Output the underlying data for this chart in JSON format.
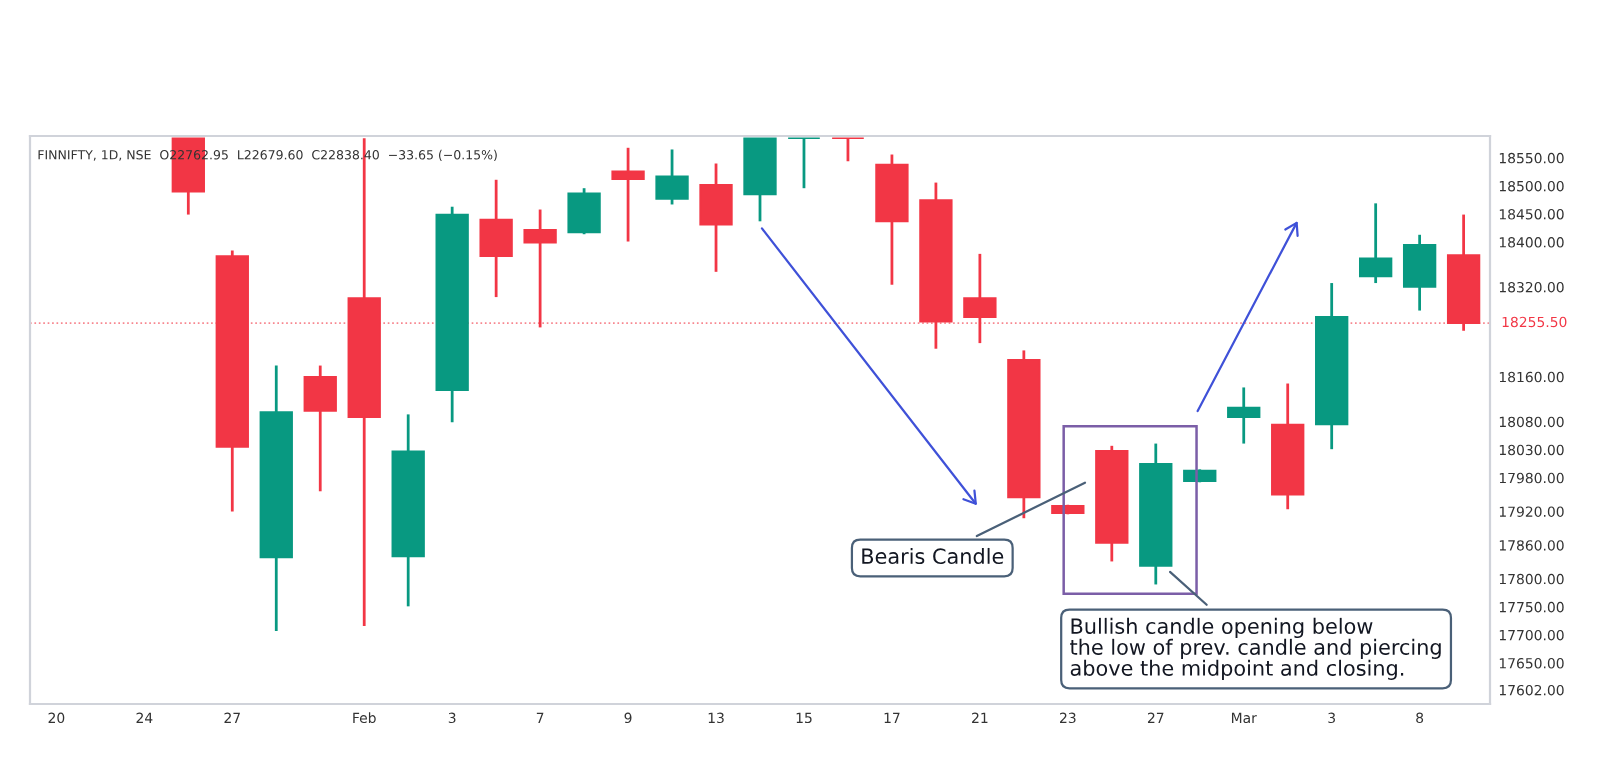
{
  "chart_data": {
    "type": "candlestick",
    "categories": [
      "20",
      null,
      "24",
      null,
      "27",
      null,
      null,
      "Feb",
      null,
      "3",
      null,
      "7",
      null,
      "9",
      null,
      "13",
      null,
      "15",
      null,
      "17",
      null,
      "21",
      null,
      "23",
      null,
      "27",
      null,
      "Mar",
      null,
      "3",
      null,
      "8",
      null
    ],
    "ohlc": [
      null,
      null,
      null,
      [
        18585,
        18585,
        18449,
        18490
      ],
      [
        18375,
        18385,
        17920,
        18035
      ],
      [
        17838,
        18180,
        17707,
        18097
      ],
      [
        18160,
        18180,
        17956,
        18099
      ],
      [
        18300,
        18585,
        17716,
        18088
      ],
      [
        17840,
        18093,
        17751,
        18027
      ],
      [
        18136,
        18463,
        18079,
        18449
      ],
      [
        18440,
        18511,
        18302,
        18375
      ],
      [
        18422,
        18458,
        18248,
        18399
      ],
      [
        18417,
        18496,
        18414,
        18487
      ],
      [
        18526,
        18568,
        18401,
        18512
      ],
      [
        18477,
        18565,
        18467,
        18517
      ],
      [
        18502,
        18540,
        18347,
        18431
      ],
      [
        18485,
        18585,
        18437,
        18585
      ],
      [
        18585,
        18585,
        18496,
        18585
      ],
      [
        18585,
        18585,
        18544,
        18585
      ],
      [
        18538,
        18556,
        18324,
        18437
      ],
      [
        18475,
        18506,
        18210,
        18258
      ],
      [
        18300,
        18379,
        18220,
        18266
      ],
      [
        18190,
        18207,
        17908,
        17945
      ],
      [
        17930,
        17932,
        17915,
        17917
      ],
      [
        18028,
        18037,
        17831,
        17864
      ],
      [
        17823,
        18041,
        17790,
        18005
      ],
      [
        17974,
        17995,
        17972,
        17993
      ],
      [
        18088,
        18141,
        18041,
        18105
      ],
      [
        18075,
        18148,
        17924,
        17950
      ],
      [
        18075,
        18327,
        18031,
        18267
      ],
      [
        18339,
        18469,
        18327,
        18371
      ],
      [
        18320,
        18413,
        18278,
        18395
      ],
      [
        18377,
        18449,
        18242,
        18255.5
      ]
    ],
    "colors": [
      null,
      null,
      null,
      "#f23645",
      "#f23645",
      "#089981",
      "#f23645",
      "#f23645",
      "#089981",
      "#089981",
      "#f23645",
      "#f23645",
      "#089981",
      "#f23645",
      "#089981",
      "#f23645",
      "#089981",
      "#089981",
      "#f23645",
      "#f23645",
      "#f23645",
      "#f23645",
      "#f23645",
      "#f23645",
      "#f23645",
      "#089981",
      "#089981",
      "#089981",
      "#f23645",
      "#089981",
      "#089981",
      "#089981",
      "#f23645"
    ],
    "ylim": [
      17577,
      18589
    ],
    "yticks": [
      {
        "value": 17602,
        "label": "17602.00"
      },
      {
        "value": 17650,
        "label": "17650.00"
      },
      {
        "value": 17700,
        "label": "17700.00"
      },
      {
        "value": 17750,
        "label": "17750.00"
      },
      {
        "value": 17800,
        "label": "17800.00"
      },
      {
        "value": 17860,
        "label": "17860.00"
      },
      {
        "value": 17920,
        "label": "17920.00"
      },
      {
        "value": 17980,
        "label": "17980.00"
      },
      {
        "value": 18030,
        "label": "18030.00"
      },
      {
        "value": 18080,
        "label": "18080.00"
      },
      {
        "value": 18160,
        "label": "18160.00"
      },
      {
        "value": 18320,
        "label": "18320.00"
      },
      {
        "value": 18400,
        "label": "18400.00"
      },
      {
        "value": 18450,
        "label": "18450.00"
      },
      {
        "value": 18500,
        "label": "18500.00"
      },
      {
        "value": 18550,
        "label": "18550.00"
      }
    ],
    "ref_lines": [
      {
        "axis": "y",
        "value": 18255.5,
        "label": "18255.50",
        "color": "#f23645",
        "line_style": "dotted"
      }
    ],
    "annotations": [
      "FINNIFTY, 1D, NSE  O22762.95  L22679.60  C22838.40  −33.65 (−0.15%)",
      "Bearis Candle",
      "Bullish candle opening below\nthe low of prev. candle and piercing\nabove the midpoint and closing."
    ],
    "grid": false
  }
}
